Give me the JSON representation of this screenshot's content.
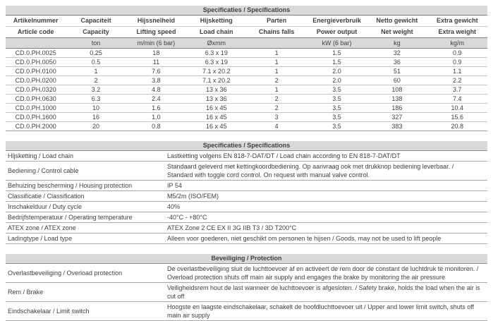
{
  "colors": {
    "bar_background": "#d9d9d9",
    "text": "#3f3f3f",
    "major_border": "#7f7f7f",
    "light_border": "#c6c6c6"
  },
  "spec_table": {
    "title": "Specificaties / Specifications",
    "columns": [
      {
        "nl": "Artikelnummer",
        "en": "Article code",
        "unit": ""
      },
      {
        "nl": "Capaciteit",
        "en": "Capacity",
        "unit": "ton"
      },
      {
        "nl": "Hijssnelheid",
        "en": "Lifting speed",
        "unit": "m/min (6 bar)"
      },
      {
        "nl": "Hijsketting",
        "en": "Load chain",
        "unit": "Øxmm"
      },
      {
        "nl": "Parten",
        "en": "Chains falls",
        "unit": ""
      },
      {
        "nl": "Energieverbruik",
        "en": "Power output",
        "unit": "kW (6 bar)"
      },
      {
        "nl": "Netto gewicht",
        "en": "Net weight",
        "unit": "kg"
      },
      {
        "nl": "Extra gewicht",
        "en": "Extra weight",
        "unit": "kg/m"
      }
    ],
    "rows": [
      [
        "CD.0.PH.0025",
        "0.25",
        "18",
        "6.3 x 19",
        "1",
        "1.5",
        "32",
        "0.9"
      ],
      [
        "CD.0.PH.0050",
        "0.5",
        "11",
        "6.3 x 19",
        "1",
        "1.5",
        "36",
        "0.9"
      ],
      [
        "CD.0.PH.0100",
        "1",
        "7.6",
        "7.1 x 20.2",
        "1",
        "2.0",
        "51",
        "1.1"
      ],
      [
        "CD.0.PH.0200",
        "2",
        "3.8",
        "7.1 x 20.2",
        "2",
        "2.0",
        "60",
        "2.2"
      ],
      [
        "CD.0.PH.0320",
        "3.2",
        "4.8",
        "13 x 36",
        "1",
        "3.5",
        "108",
        "3.7"
      ],
      [
        "CD.0.PH.0630",
        "6.3",
        "2.4",
        "13 x 36",
        "2",
        "3.5",
        "138",
        "7.4"
      ],
      [
        "CD.0.PH.1000",
        "10",
        "1.6",
        "16 x 45",
        "2",
        "3.5",
        "186",
        "10.4"
      ],
      [
        "CD.0.PH.1600",
        "16",
        "1.0",
        "16 x 45",
        "3",
        "3.5",
        "327",
        "15.6"
      ],
      [
        "CD.0.PH.2000",
        "20",
        "0.8",
        "16 x 45",
        "4",
        "3.5",
        "383",
        "20.8"
      ]
    ]
  },
  "details_table": {
    "title": "Specificaties / Specifications",
    "rows": [
      {
        "label": "Hijsketting / Load chain",
        "value": "Lastketting volgens EN 818-7-DAT/DT / Load chain according to EN 818-7-DAT/DT"
      },
      {
        "label": "Bediening / Control cable",
        "value": "Standaard geleverd met kettingkoordbediening. Op aanvraag ook met drukknop bediening leverbaar. /\nStandard with toggle cord control. On request with manual valve control."
      },
      {
        "label": "Behuizing bescherming / Housing protection",
        "value": "IP 54"
      },
      {
        "label": "Classificatie / Classification",
        "value": "M5/2m (ISO/FEM)"
      },
      {
        "label": "Inschakelduur / Duty cycle",
        "value": "40%"
      },
      {
        "label": "Bedrijfstemperatuur / Operating temperature",
        "value": "-40°C -  +80°C"
      },
      {
        "label": "ATEX zone / ATEX zone",
        "value": "ATEX Zone 2 CE EX II 3G IIB T3 / 3D T200°C"
      },
      {
        "label": "Ladingtype / Load type",
        "value": "Alleen voor goederen, niet geschikt om personen te hijsen / Goods, may not be used to lift people"
      }
    ]
  },
  "protection_table": {
    "title": "Beveiliging / Protection",
    "rows": [
      {
        "label": "Overlastbeveiliging / Overload protection",
        "value": "De overlastbeveiliging  sluit de luchttoevoer af en activeert de rem door de constant de luchtdruk te monitoren. /\nOverload protection shuts off main air supply and engages the brake by monitoring the air pressure"
      },
      {
        "label": "Rem / Brake",
        "value": "Veiligheidsrem hout de last wanneer de luchttoevoer is afgesloten. / Safety brake, holds the load when the air is cut off"
      },
      {
        "label": "Eindschakelaar / Limit switch",
        "value": "Hoogste en laagste eindschakelaar, schakelt de hoofdluchttoevoer uit / Upper and lower limit switch, shuts off main air supply"
      }
    ]
  }
}
